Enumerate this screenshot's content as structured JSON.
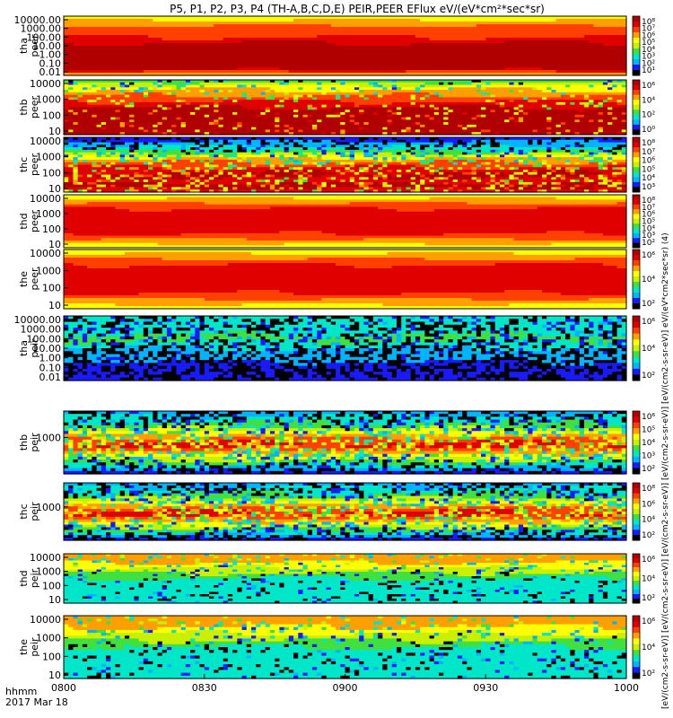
{
  "title": "P5, P1, P2, P3, P4 (TH-A,B,C,D,E) PEIR,PEER EFlux eV/(eV*cm²*sec*sr)",
  "colorbar_label": "[eV/(cm2-s-sr-eV)] [eV/(cm2-s-sr-eV)] [eV/(cm2-s-sr-eV)] [eV/(cm2-s-sr-eV)] [eV/(cm2-s-sr-eV)] eV/(eV*cm2*sec*sr) (4)",
  "x_axis": {
    "ticks": [
      "0800",
      "0830",
      "0900",
      "0930",
      "1000"
    ],
    "label_line1": "hhmm",
    "label_line2": "2017 Mar 18"
  },
  "colormap": [
    "#000000",
    "#1a1aff",
    "#00b4ff",
    "#00e6c8",
    "#40e040",
    "#c8f000",
    "#ffff00",
    "#ffa000",
    "#ff4000",
    "#e00000",
    "#b00000"
  ],
  "chart_data": [
    {
      "type": "heatmap",
      "probe": "tha",
      "species": "peer",
      "ylabel": [
        "tha",
        "peer"
      ],
      "yticks": [
        "10000.00",
        "1000.00",
        "100.00",
        "10.00",
        "1.00",
        "0.10",
        "0.01"
      ],
      "xlim": [
        "0800",
        "1000"
      ],
      "colorbar_ticks": [
        "10⁸",
        "10⁷",
        "10⁶",
        "10⁵",
        "10⁴",
        "10³",
        "10²",
        "10¹"
      ],
      "profile": [
        6,
        7,
        8,
        8,
        9,
        10,
        10,
        10,
        10,
        10,
        7
      ],
      "spotty": 0.0
    },
    {
      "type": "heatmap",
      "probe": "thb",
      "species": "peer",
      "ylabel": [
        "thb",
        "peer"
      ],
      "yticks": [
        "10000",
        "1000",
        "100",
        "10"
      ],
      "xlim": [
        "0800",
        "1000"
      ],
      "colorbar_ticks": [
        "10⁶",
        "10⁴",
        "10²",
        "10⁰"
      ],
      "profile": [
        4,
        6,
        7,
        8,
        9,
        10,
        10,
        10,
        10,
        10
      ],
      "spotty": 0.15
    },
    {
      "type": "heatmap",
      "probe": "thc",
      "species": "peer",
      "ylabel": [
        "thc",
        "peer"
      ],
      "yticks": [
        "10000",
        "1000",
        "100",
        "10"
      ],
      "xlim": [
        "0800",
        "1000"
      ],
      "colorbar_ticks": [
        "10⁸",
        "10⁷",
        "10⁶",
        "10⁵",
        "10⁴",
        "10³"
      ],
      "profile": [
        1,
        2,
        3,
        5,
        7,
        8,
        9,
        10,
        9,
        10,
        9
      ],
      "spotty": 0.3
    },
    {
      "type": "heatmap",
      "probe": "thd",
      "species": "peer",
      "ylabel": [
        "thd",
        "peer"
      ],
      "yticks": [
        "10000",
        "1000",
        "100",
        "10"
      ],
      "xlim": [
        "0800",
        "1000"
      ],
      "colorbar_ticks": [
        "10⁸",
        "10⁷",
        "10⁶",
        "10⁵",
        "10⁴",
        "10³",
        "10²"
      ],
      "profile": [
        6,
        7,
        8,
        9,
        9,
        9,
        9,
        9,
        8,
        7,
        6
      ],
      "spotty": 0.0
    },
    {
      "type": "heatmap",
      "probe": "the",
      "species": "peer",
      "ylabel": [
        "the",
        "peer"
      ],
      "yticks": [
        "10000",
        "1000",
        "100",
        "10"
      ],
      "xlim": [
        "0800",
        "1000"
      ],
      "colorbar_ticks": [
        "10⁶",
        "10⁴",
        "10²"
      ],
      "profile": [
        6,
        7,
        8,
        9,
        9,
        9,
        9,
        9,
        8,
        7,
        6
      ],
      "spotty": 0.0
    },
    {
      "type": "heatmap",
      "probe": "tha",
      "species": "peir",
      "ylabel": [
        "tha",
        "peir"
      ],
      "yticks": [
        "10000.00",
        "1000.00",
        "100.00",
        "10.00",
        "1.00",
        "0.10",
        "0.01"
      ],
      "xlim": [
        "0800",
        "1000"
      ],
      "colorbar_ticks": [
        "10⁶",
        "10⁴",
        "10²"
      ],
      "profile": [
        3,
        3,
        3,
        4,
        3,
        2,
        2,
        1,
        1,
        1
      ],
      "spotty": 0.45
    },
    {
      "type": "heatmap",
      "probe": "thb",
      "species": "peir",
      "ylabel": [
        "thb",
        "peir"
      ],
      "yticks": [
        "1000"
      ],
      "xlim": [
        "0800",
        "1000"
      ],
      "colorbar_ticks": [
        "10⁶",
        "10⁵",
        "10⁴",
        "10³",
        "10²"
      ],
      "profile": [
        2,
        3,
        4,
        6,
        8,
        9,
        7,
        5,
        3,
        1
      ],
      "spotty": 0.4
    },
    {
      "type": "heatmap",
      "probe": "thc",
      "species": "peir",
      "ylabel": [
        "thc",
        "peir"
      ],
      "yticks": [
        "1000"
      ],
      "xlim": [
        "0800",
        "1000"
      ],
      "colorbar_ticks": [
        "10⁸",
        "10⁶",
        "10⁴",
        "10²"
      ],
      "profile": [
        2,
        3,
        4,
        6,
        8,
        9,
        7,
        5,
        3,
        1
      ],
      "spotty": 0.4
    },
    {
      "type": "heatmap",
      "probe": "thd",
      "species": "peir",
      "ylabel": [
        "thd",
        "peir"
      ],
      "yticks": [
        "10000",
        "1000",
        "100",
        "10"
      ],
      "xlim": [
        "0800",
        "1000"
      ],
      "colorbar_ticks": [
        "10⁶",
        "10⁴",
        "10²"
      ],
      "profile": [
        7,
        7,
        6,
        5,
        4,
        3,
        3,
        3,
        3,
        3
      ],
      "spotty": 0.15
    },
    {
      "type": "heatmap",
      "probe": "the",
      "species": "peir",
      "ylabel": [
        "the",
        "peir"
      ],
      "yticks": [
        "10000",
        "1000",
        "100",
        "10"
      ],
      "xlim": [
        "0800",
        "1000"
      ],
      "colorbar_ticks": [
        "10⁶",
        "10⁴",
        "10²"
      ],
      "profile": [
        7,
        7,
        6,
        5,
        4,
        3,
        3,
        3,
        3,
        3
      ],
      "spotty": 0.15
    }
  ]
}
